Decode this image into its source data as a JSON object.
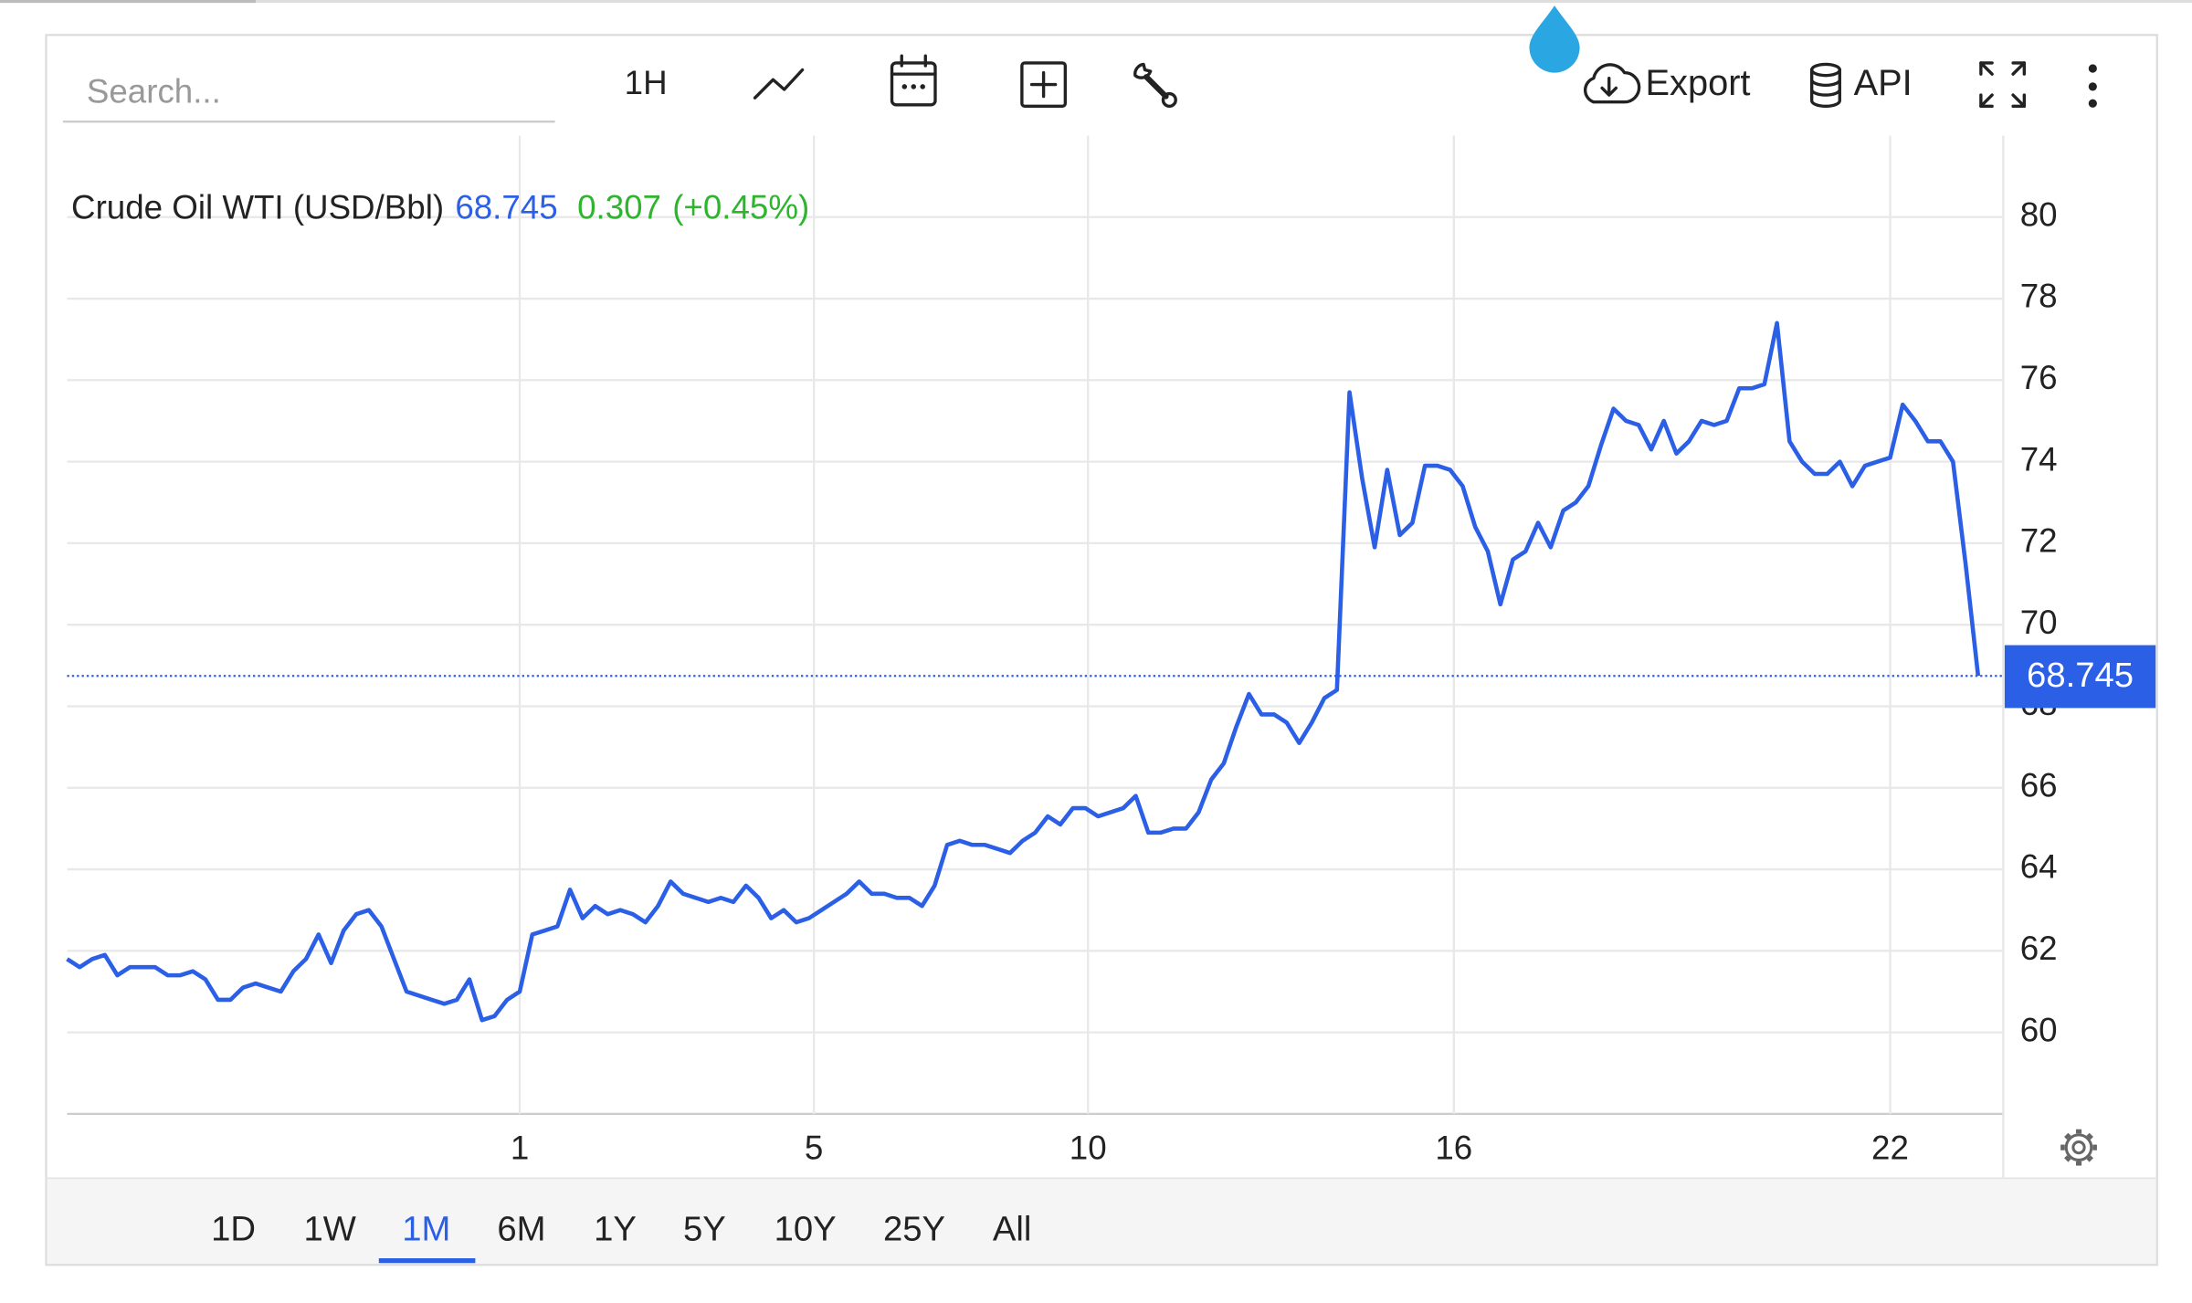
{
  "toolbar": {
    "search_placeholder": "Search...",
    "interval": "1H",
    "export": "Export",
    "api": "API"
  },
  "ranges": {
    "options": [
      "1D",
      "1W",
      "1M",
      "6M",
      "1Y",
      "5Y",
      "10Y",
      "25Y",
      "All"
    ],
    "active": "1M"
  },
  "chart_data": {
    "type": "line",
    "x": [
      0,
      1,
      2,
      3,
      4,
      5,
      6,
      7,
      8,
      9,
      10,
      11,
      12,
      13,
      14,
      15,
      16,
      17,
      18,
      19,
      20,
      21,
      22,
      23,
      24,
      25,
      26,
      27,
      28,
      29,
      30,
      31,
      32,
      33,
      34,
      35,
      36,
      37,
      38,
      39,
      40,
      41,
      42,
      43,
      44,
      45,
      46,
      47,
      48,
      49,
      50,
      51,
      52,
      53,
      54,
      55,
      56,
      57,
      58,
      59,
      60,
      61,
      62,
      63,
      64,
      65,
      66,
      67,
      68,
      69,
      70,
      71,
      72,
      73,
      74,
      75,
      76,
      77,
      78,
      79,
      80,
      81,
      82,
      83,
      84,
      85,
      86,
      87,
      88,
      89,
      90,
      91,
      92,
      93,
      94,
      95,
      96,
      97,
      98,
      99,
      100,
      101,
      102,
      103,
      104,
      105,
      106,
      107,
      108,
      109,
      110,
      111,
      112,
      113,
      114,
      115,
      116,
      117,
      118,
      119,
      120,
      121,
      122,
      123,
      124,
      125,
      126,
      127,
      128,
      129,
      130,
      131,
      132,
      133,
      134,
      135,
      136,
      137,
      138,
      139,
      140,
      141,
      142,
      143,
      144,
      145,
      146,
      147,
      148,
      149,
      150,
      151,
      152
    ],
    "series": [
      {
        "name": "Crude Oil WTI (USD/Bbl)",
        "color": "#2a5fe6",
        "values": [
          61.8,
          61.6,
          61.8,
          61.9,
          61.4,
          61.6,
          61.6,
          61.6,
          61.4,
          61.4,
          61.5,
          61.3,
          60.8,
          60.8,
          61.1,
          61.2,
          61.1,
          61.0,
          61.5,
          61.8,
          62.4,
          61.7,
          62.5,
          62.9,
          63.0,
          62.6,
          61.8,
          61.0,
          60.9,
          60.8,
          60.7,
          60.8,
          61.3,
          60.3,
          60.4,
          60.8,
          61.0,
          62.4,
          62.5,
          62.6,
          63.5,
          62.8,
          63.1,
          62.9,
          63.0,
          62.9,
          62.7,
          63.1,
          63.7,
          63.4,
          63.3,
          63.2,
          63.3,
          63.2,
          63.6,
          63.3,
          62.8,
          63.0,
          62.7,
          62.8,
          63.0,
          63.2,
          63.4,
          63.7,
          63.4,
          63.4,
          63.3,
          63.3,
          63.1,
          63.6,
          64.6,
          64.7,
          64.6,
          64.6,
          64.5,
          64.4,
          64.7,
          64.9,
          65.3,
          65.1,
          65.5,
          65.5,
          65.3,
          65.4,
          65.5,
          65.8,
          64.9,
          64.9,
          65.0,
          65.0,
          65.4,
          66.2,
          66.6,
          67.5,
          68.3,
          67.8,
          67.8,
          67.6,
          67.1,
          67.6,
          68.2,
          68.4,
          75.7,
          73.6,
          71.9,
          73.8,
          72.2,
          72.5,
          73.9,
          73.9,
          73.8,
          73.4,
          72.4,
          71.8,
          70.5,
          71.6,
          71.8,
          72.5,
          71.9,
          72.8,
          73.0,
          73.4,
          74.4,
          75.3,
          75.0,
          74.9,
          74.3,
          75.0,
          74.2,
          74.5,
          75.0,
          74.9,
          75.0,
          75.8,
          75.8,
          75.9,
          77.4,
          74.5,
          74.0,
          73.7,
          73.7,
          74.0,
          73.4,
          73.9,
          74.0,
          74.1,
          75.4,
          75.0,
          74.5,
          74.5,
          74.0,
          71.5,
          68.745
        ]
      }
    ],
    "last_price": 68.745,
    "change": 0.307,
    "change_percent": "(+0.45%)",
    "change_color": "#2db52d",
    "xlim": [
      0,
      154
    ],
    "xticks": [
      {
        "value": 36,
        "label": "1"
      },
      {
        "value": 59.4,
        "label": "5"
      },
      {
        "value": 81.2,
        "label": "10"
      },
      {
        "value": 110.3,
        "label": "16"
      },
      {
        "value": 145,
        "label": "22"
      }
    ],
    "ylim": [
      58,
      82
    ],
    "yticks": [
      60,
      62,
      64,
      66,
      68,
      70,
      72,
      74,
      76,
      78,
      80
    ],
    "grid": true
  }
}
